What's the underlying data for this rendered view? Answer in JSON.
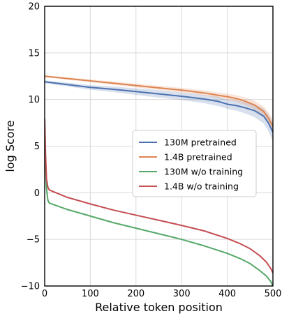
{
  "chart_data": {
    "type": "line",
    "title": "",
    "xlabel": "Relative token position",
    "ylabel": "log Score",
    "xlim": [
      0,
      500
    ],
    "ylim": [
      -10,
      20
    ],
    "xticks": [
      0,
      100,
      200,
      300,
      400,
      500
    ],
    "yticks": [
      -10,
      -5,
      0,
      5,
      10,
      15,
      20
    ],
    "x_tick_labels": [
      "0",
      "100",
      "200",
      "300",
      "400",
      "500"
    ],
    "y_tick_labels": [
      "−10",
      "−5",
      "0",
      "5",
      "10",
      "15",
      "20"
    ],
    "grid": true,
    "legend_position": "center-right",
    "series": [
      {
        "name": "130M pretrained",
        "color": "#4c72b0",
        "x": [
          0,
          50,
          100,
          150,
          200,
          250,
          300,
          350,
          380,
          400,
          420,
          440,
          460,
          480,
          490,
          500
        ],
        "y": [
          11.9,
          11.6,
          11.3,
          11.1,
          10.85,
          10.6,
          10.35,
          10.05,
          9.8,
          9.5,
          9.35,
          9.1,
          8.8,
          8.2,
          7.5,
          6.5
        ],
        "band": [
          0.15,
          0.2,
          0.25,
          0.3,
          0.35,
          0.4,
          0.4,
          0.45,
          0.5,
          0.5,
          0.55,
          0.6,
          0.7,
          0.8,
          0.9,
          1.0
        ]
      },
      {
        "name": "1.4B pretrained",
        "color": "#dd8452",
        "x": [
          0,
          50,
          100,
          150,
          200,
          250,
          300,
          350,
          380,
          400,
          420,
          440,
          460,
          480,
          490,
          500
        ],
        "y": [
          12.5,
          12.25,
          12.0,
          11.75,
          11.5,
          11.25,
          11.0,
          10.7,
          10.45,
          10.3,
          10.1,
          9.8,
          9.4,
          8.7,
          8.0,
          7.1
        ],
        "band": [
          0.1,
          0.12,
          0.15,
          0.18,
          0.2,
          0.22,
          0.25,
          0.28,
          0.3,
          0.33,
          0.36,
          0.4,
          0.45,
          0.55,
          0.65,
          0.75
        ]
      },
      {
        "name": "130M w/o training",
        "color": "#55a868",
        "x": [
          0,
          2,
          4,
          7,
          10,
          50,
          100,
          150,
          200,
          250,
          300,
          350,
          400,
          430,
          450,
          470,
          485,
          495,
          500
        ],
        "y": [
          8.0,
          3.0,
          0.5,
          -0.8,
          -1.1,
          -1.8,
          -2.5,
          -3.2,
          -3.8,
          -4.4,
          -5.0,
          -5.7,
          -6.5,
          -7.1,
          -7.6,
          -8.3,
          -8.9,
          -9.5,
          -10.0
        ]
      },
      {
        "name": "1.4B w/o training",
        "color": "#c44e52",
        "x": [
          0,
          2,
          4,
          7,
          10,
          50,
          100,
          150,
          200,
          250,
          300,
          350,
          400,
          430,
          450,
          470,
          485,
          495,
          500
        ],
        "y": [
          8.0,
          4.0,
          1.5,
          0.6,
          0.3,
          -0.5,
          -1.2,
          -1.85,
          -2.4,
          -2.95,
          -3.5,
          -4.1,
          -4.9,
          -5.5,
          -6.0,
          -6.7,
          -7.4,
          -8.1,
          -8.6
        ]
      }
    ]
  }
}
